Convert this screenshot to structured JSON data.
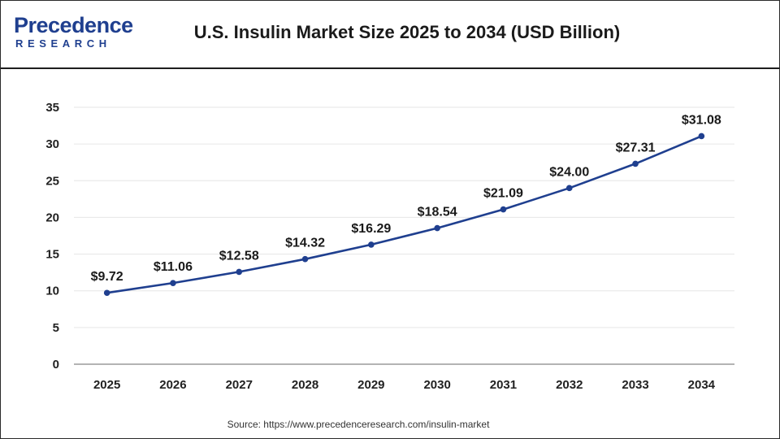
{
  "header": {
    "logo_main": "Precedence",
    "logo_sub": "RESEARCH"
  },
  "chart_data": {
    "type": "line",
    "title": "U.S. Insulin Market Size 2025 to 2034 (USD Billion)",
    "categories": [
      "2025",
      "2026",
      "2027",
      "2028",
      "2029",
      "2030",
      "2031",
      "2032",
      "2033",
      "2034"
    ],
    "values": [
      9.72,
      11.06,
      12.58,
      14.32,
      16.29,
      18.54,
      21.09,
      24.0,
      27.31,
      31.08
    ],
    "data_labels": [
      "$9.72",
      "$11.06",
      "$12.58",
      "$14.32",
      "$16.29",
      "$18.54",
      "$21.09",
      "$24.00",
      "$27.31",
      "$31.08"
    ],
    "y_ticks": [
      0,
      5,
      10,
      15,
      20,
      25,
      30,
      35
    ],
    "ylim": [
      0,
      35
    ],
    "xlabel": "",
    "ylabel": "",
    "grid": true,
    "legend": "none",
    "line_color": "#1f3f8f",
    "marker_color": "#1f3f8f"
  },
  "footer": {
    "source": "Source: https://www.precedenceresearch.com/insulin-market"
  }
}
